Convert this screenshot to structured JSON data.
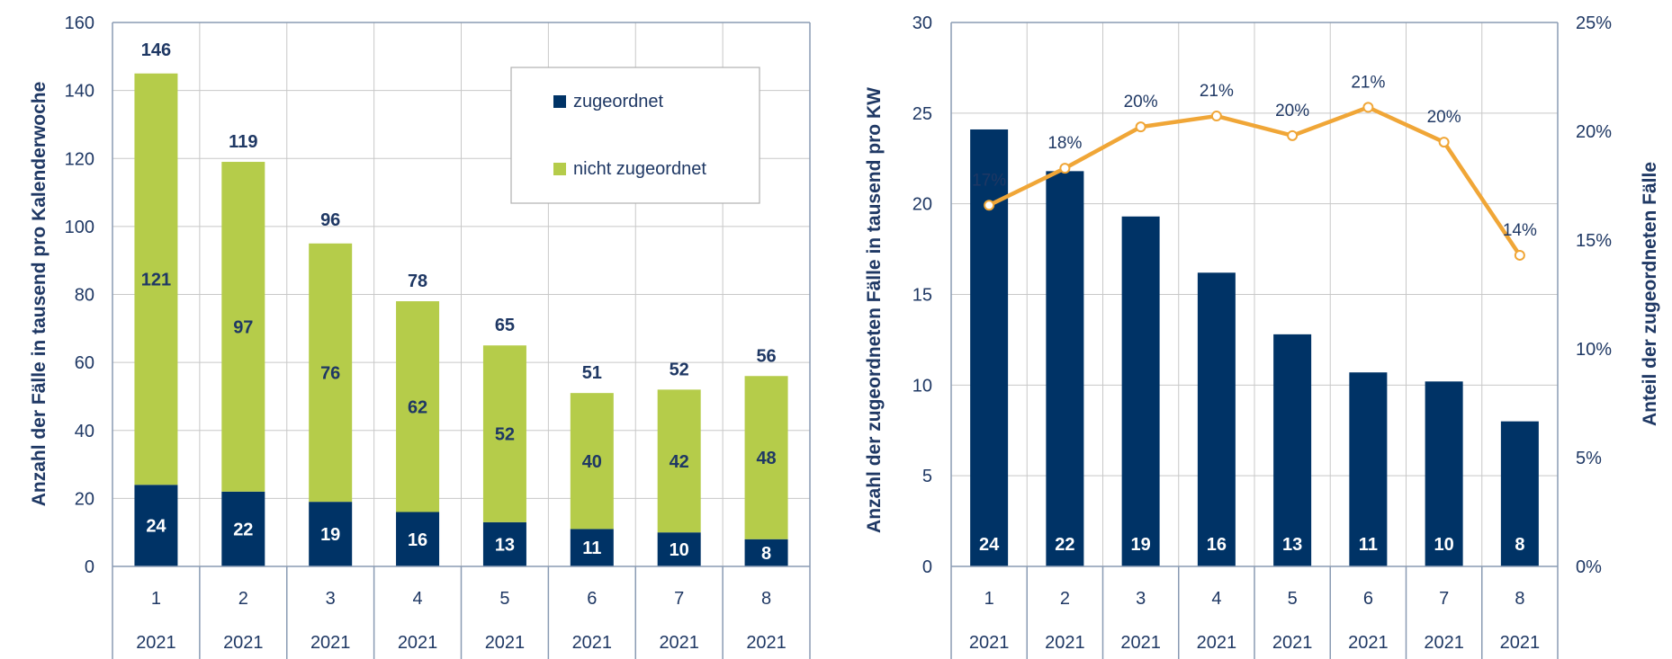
{
  "colors": {
    "navy": "#003366",
    "green": "#b5cc4a",
    "orange": "#f0a637",
    "text": "#1f3864",
    "grid": "#c8c8c8",
    "axis": "#8a9bb3"
  },
  "chart_data": [
    {
      "type": "bar",
      "stacked": true,
      "categories": [
        "1",
        "2",
        "3",
        "4",
        "5",
        "6",
        "7",
        "8"
      ],
      "category_groups": [
        "2021",
        "2021",
        "2021",
        "2021",
        "2021",
        "2021",
        "2021",
        "2021"
      ],
      "series": [
        {
          "name": "zugeordnet",
          "color": "#003366",
          "values": [
            24,
            22,
            19,
            16,
            13,
            11,
            10,
            8
          ]
        },
        {
          "name": "nicht zugeordnet",
          "color": "#b5cc4a",
          "values": [
            121,
            97,
            76,
            62,
            52,
            40,
            42,
            48
          ]
        }
      ],
      "totals": [
        146,
        119,
        96,
        78,
        65,
        51,
        52,
        56
      ],
      "title": "",
      "xlabel": "",
      "ylabel": "Anzahl der Fälle in tausend pro Kalenderwoche",
      "ylim": [
        0,
        160
      ],
      "yticks": [
        "0",
        "20",
        "40",
        "60",
        "80",
        "100",
        "120",
        "140",
        "160"
      ],
      "grid": true,
      "legend": "top-right"
    },
    {
      "type": "bar",
      "categories": [
        "1",
        "2",
        "3",
        "4",
        "5",
        "6",
        "7",
        "8"
      ],
      "category_groups": [
        "2021",
        "2021",
        "2021",
        "2021",
        "2021",
        "2021",
        "2021",
        "2021"
      ],
      "series": [
        {
          "values": [
            24.1,
            21.8,
            19.3,
            16.2,
            12.8,
            10.7,
            10.2,
            8.0
          ],
          "labels": [
            "24",
            "22",
            "19",
            "16",
            "13",
            "11",
            "10",
            "8"
          ],
          "color": "#003366",
          "axis": "left"
        },
        {
          "type": "line",
          "values": [
            16.6,
            18.3,
            20.2,
            20.7,
            19.8,
            21.1,
            19.5,
            14.3
          ],
          "labels": [
            "17%",
            "18%",
            "20%",
            "21%",
            "20%",
            "21%",
            "20%",
            "14%"
          ],
          "color": "#f0a637",
          "axis": "right"
        }
      ],
      "title": "",
      "xlabel": "",
      "ylabel": "Anzahl der zugeordneten Fälle in tausend pro KW",
      "y2label": "Anteil der zugeordneten Fälle",
      "ylim": [
        0,
        30
      ],
      "y2lim": [
        0,
        25
      ],
      "yticks": [
        "0",
        "5",
        "10",
        "15",
        "20",
        "25",
        "30"
      ],
      "y2ticks": [
        "0%",
        "5%",
        "10%",
        "15%",
        "20%",
        "25%"
      ],
      "grid": true
    }
  ]
}
